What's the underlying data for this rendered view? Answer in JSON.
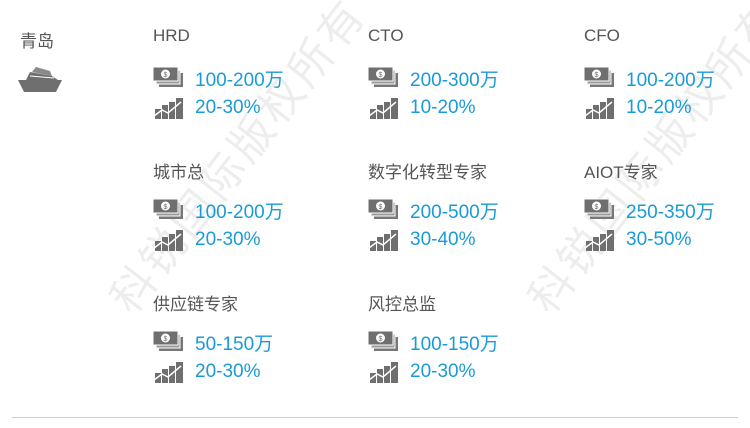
{
  "city": "青岛",
  "watermark": "科锐国际版权所有",
  "colors": {
    "value": "#1a9bd7",
    "text": "#555555"
  },
  "icons": {
    "city": "ship-icon",
    "salary": "money-icon",
    "growth": "growth-chart-icon"
  },
  "roles": [
    {
      "title": "HRD",
      "salary": "100-200万",
      "growth": "20-30%"
    },
    {
      "title": "CTO",
      "salary": "200-300万",
      "growth": "10-20%"
    },
    {
      "title": "CFO",
      "salary": "100-200万",
      "growth": "10-20%"
    },
    {
      "title": "城市总",
      "salary": "100-200万",
      "growth": "20-30%"
    },
    {
      "title": "数字化转型专家",
      "salary": "200-500万",
      "growth": "30-40%"
    },
    {
      "title": "AIOT专家",
      "salary": "250-350万",
      "growth": "30-50%"
    },
    {
      "title": "供应链专家",
      "salary": "50-150万",
      "growth": "20-30%"
    },
    {
      "title": "风控总监",
      "salary": "100-150万",
      "growth": "20-30%"
    }
  ]
}
